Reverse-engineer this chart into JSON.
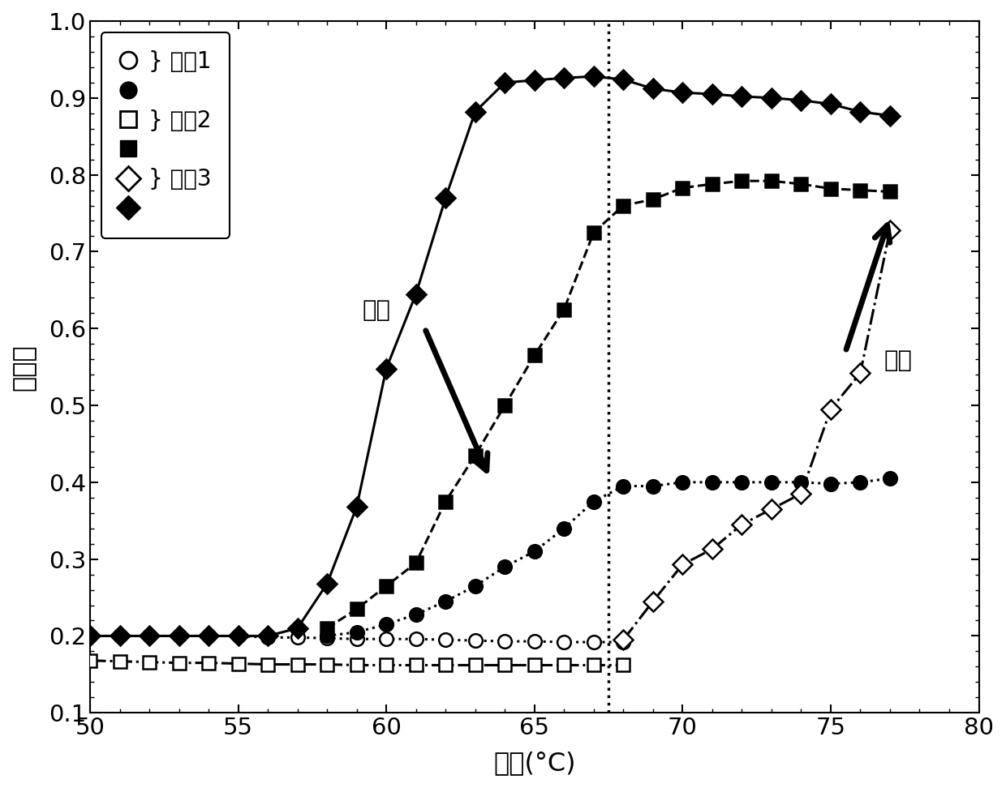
{
  "xlabel": "温度(°C)",
  "ylabel": "辐射率",
  "xlim": [
    50,
    80
  ],
  "ylim": [
    0.1,
    1.0
  ],
  "xticks": [
    50,
    55,
    60,
    65,
    70,
    75,
    80
  ],
  "yticks": [
    0.1,
    0.2,
    0.3,
    0.4,
    0.5,
    0.6,
    0.7,
    0.8,
    0.9,
    1.0
  ],
  "vline_x": 67.5,
  "T1_cool_x": [
    50,
    51,
    52,
    53,
    54,
    55,
    56,
    57,
    58,
    59,
    60,
    61,
    62,
    63,
    64,
    65,
    66,
    67,
    68
  ],
  "T1_cool_y": [
    0.2,
    0.2,
    0.2,
    0.2,
    0.2,
    0.2,
    0.198,
    0.198,
    0.197,
    0.196,
    0.196,
    0.196,
    0.195,
    0.194,
    0.193,
    0.193,
    0.192,
    0.192,
    0.192
  ],
  "T1_heat_x": [
    58,
    59,
    60,
    61,
    62,
    63,
    64,
    65,
    66,
    67,
    68,
    69,
    70,
    71,
    72,
    73,
    74,
    75,
    76,
    77
  ],
  "T1_heat_y": [
    0.2,
    0.205,
    0.215,
    0.228,
    0.245,
    0.265,
    0.29,
    0.31,
    0.34,
    0.375,
    0.395,
    0.395,
    0.4,
    0.4,
    0.4,
    0.4,
    0.4,
    0.398,
    0.4,
    0.405
  ],
  "T2_cool_x": [
    50,
    51,
    52,
    53,
    54,
    55,
    56,
    57,
    58,
    59,
    60,
    61,
    62,
    63,
    64,
    65,
    66,
    67,
    68
  ],
  "T2_cool_y": [
    0.168,
    0.167,
    0.166,
    0.165,
    0.165,
    0.164,
    0.163,
    0.163,
    0.163,
    0.162,
    0.162,
    0.162,
    0.162,
    0.162,
    0.162,
    0.162,
    0.162,
    0.162,
    0.162
  ],
  "T2_heat_x": [
    58,
    59,
    60,
    61,
    62,
    63,
    64,
    65,
    66,
    67,
    68,
    69,
    70,
    71,
    72,
    73,
    74,
    75,
    76,
    77
  ],
  "T2_heat_y": [
    0.21,
    0.235,
    0.265,
    0.295,
    0.375,
    0.435,
    0.5,
    0.565,
    0.625,
    0.725,
    0.76,
    0.768,
    0.783,
    0.788,
    0.792,
    0.792,
    0.788,
    0.782,
    0.78,
    0.778
  ],
  "T3_heat_x": [
    50,
    51,
    52,
    53,
    54,
    55,
    56,
    57,
    58,
    59,
    60,
    61,
    62,
    63,
    64,
    65,
    66,
    67,
    68,
    69,
    70,
    71,
    72,
    73,
    74,
    75,
    76,
    77
  ],
  "T3_heat_y": [
    0.2,
    0.2,
    0.2,
    0.2,
    0.2,
    0.2,
    0.2,
    0.21,
    0.268,
    0.368,
    0.548,
    0.645,
    0.77,
    0.882,
    0.92,
    0.923,
    0.926,
    0.928,
    0.924,
    0.912,
    0.907,
    0.905,
    0.902,
    0.9,
    0.897,
    0.892,
    0.882,
    0.877
  ],
  "T3_cool_x": [
    68,
    69,
    70,
    71,
    72,
    73,
    74,
    75,
    76,
    77
  ],
  "T3_cool_y": [
    0.195,
    0.245,
    0.293,
    0.313,
    0.345,
    0.365,
    0.385,
    0.495,
    0.542,
    0.728
  ],
  "fontsize_label": 23,
  "fontsize_tick": 21,
  "fontsize_legend": 20,
  "fontsize_annot": 21,
  "marker_size": 12,
  "linewidth": 2.2
}
